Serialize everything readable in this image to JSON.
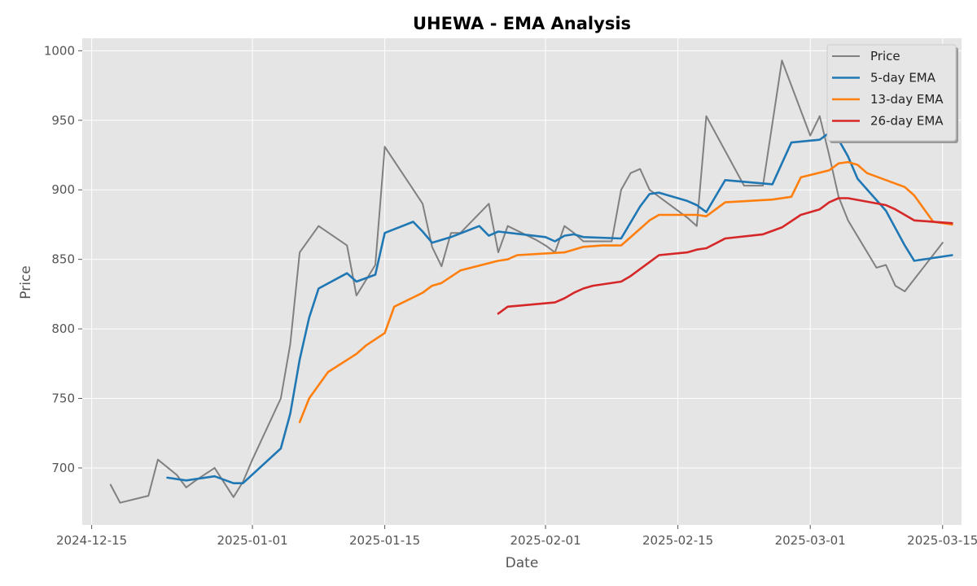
{
  "chart_data": {
    "type": "line",
    "title": "UHEWA - EMA Analysis",
    "xlabel": "Date",
    "ylabel": "Price",
    "xlim": [
      "2024-12-14",
      "2025-03-17"
    ],
    "ylim": [
      659,
      1009
    ],
    "x_ticks": [
      "2024-12-15",
      "2025-01-01",
      "2025-01-15",
      "2025-02-01",
      "2025-02-15",
      "2025-03-01",
      "2025-03-15"
    ],
    "y_ticks": [
      700,
      750,
      800,
      850,
      900,
      950,
      1000
    ],
    "grid": true,
    "legend_position": "top-right",
    "series": [
      {
        "name": "Price",
        "color": "#808080",
        "points": [
          [
            "2024-12-17",
            688
          ],
          [
            "2024-12-18",
            675
          ],
          [
            "2024-12-21",
            680
          ],
          [
            "2024-12-22",
            706
          ],
          [
            "2024-12-24",
            695
          ],
          [
            "2024-12-25",
            686
          ],
          [
            "2024-12-26",
            691
          ],
          [
            "2024-12-28",
            700
          ],
          [
            "2024-12-30",
            679
          ],
          [
            "2024-12-31",
            690
          ],
          [
            "2025-01-01",
            706
          ],
          [
            "2025-01-04",
            750
          ],
          [
            "2025-01-05",
            789
          ],
          [
            "2025-01-06",
            855
          ],
          [
            "2025-01-08",
            874
          ],
          [
            "2025-01-11",
            860
          ],
          [
            "2025-01-12",
            824
          ],
          [
            "2025-01-14",
            846
          ],
          [
            "2025-01-15",
            931
          ],
          [
            "2025-01-19",
            890
          ],
          [
            "2025-01-20",
            859
          ],
          [
            "2025-01-21",
            845
          ],
          [
            "2025-01-22",
            869
          ],
          [
            "2025-01-23",
            869
          ],
          [
            "2025-01-26",
            890
          ],
          [
            "2025-01-27",
            855
          ],
          [
            "2025-01-28",
            874
          ],
          [
            "2025-01-31",
            864
          ],
          [
            "2025-02-01",
            860
          ],
          [
            "2025-02-02",
            855
          ],
          [
            "2025-02-03",
            874
          ],
          [
            "2025-02-04",
            869
          ],
          [
            "2025-02-05",
            863
          ],
          [
            "2025-02-07",
            863
          ],
          [
            "2025-02-08",
            863
          ],
          [
            "2025-02-09",
            900
          ],
          [
            "2025-02-10",
            912
          ],
          [
            "2025-02-11",
            915
          ],
          [
            "2025-02-12",
            900
          ],
          [
            "2025-02-16",
            880
          ],
          [
            "2025-02-17",
            874
          ],
          [
            "2025-02-18",
            953
          ],
          [
            "2025-02-22",
            903
          ],
          [
            "2025-02-24",
            903
          ],
          [
            "2025-02-26",
            993
          ],
          [
            "2025-03-01",
            939
          ],
          [
            "2025-03-02",
            953
          ],
          [
            "2025-03-03",
            925
          ],
          [
            "2025-03-04",
            895
          ],
          [
            "2025-03-05",
            878
          ],
          [
            "2025-03-08",
            844
          ],
          [
            "2025-03-09",
            846
          ],
          [
            "2025-03-10",
            831
          ],
          [
            "2025-03-11",
            827
          ],
          [
            "2025-03-15",
            862
          ]
        ]
      },
      {
        "name": "5-day EMA",
        "color": "#1f77b4",
        "points": [
          [
            "2024-12-23",
            693
          ],
          [
            "2024-12-25",
            691
          ],
          [
            "2024-12-28",
            694
          ],
          [
            "2024-12-30",
            689
          ],
          [
            "2024-12-31",
            689
          ],
          [
            "2025-01-04",
            714
          ],
          [
            "2025-01-05",
            739
          ],
          [
            "2025-01-06",
            778
          ],
          [
            "2025-01-07",
            808
          ],
          [
            "2025-01-08",
            829
          ],
          [
            "2025-01-11",
            840
          ],
          [
            "2025-01-12",
            834
          ],
          [
            "2025-01-14",
            839
          ],
          [
            "2025-01-15",
            869
          ],
          [
            "2025-01-18",
            877
          ],
          [
            "2025-01-19",
            870
          ],
          [
            "2025-01-20",
            862
          ],
          [
            "2025-01-22",
            866
          ],
          [
            "2025-01-25",
            874
          ],
          [
            "2025-01-26",
            867
          ],
          [
            "2025-01-27",
            870
          ],
          [
            "2025-02-01",
            866
          ],
          [
            "2025-02-02",
            863
          ],
          [
            "2025-02-03",
            867
          ],
          [
            "2025-02-04",
            868
          ],
          [
            "2025-02-05",
            866
          ],
          [
            "2025-02-09",
            865
          ],
          [
            "2025-02-11",
            888
          ],
          [
            "2025-02-12",
            897
          ],
          [
            "2025-02-13",
            898
          ],
          [
            "2025-02-16",
            892
          ],
          [
            "2025-02-17",
            889
          ],
          [
            "2025-02-18",
            884
          ],
          [
            "2025-02-20",
            907
          ],
          [
            "2025-02-25",
            904
          ],
          [
            "2025-02-27",
            934
          ],
          [
            "2025-03-02",
            936
          ],
          [
            "2025-03-03",
            941
          ],
          [
            "2025-03-04",
            936
          ],
          [
            "2025-03-05",
            924
          ],
          [
            "2025-03-06",
            908
          ],
          [
            "2025-03-09",
            885
          ],
          [
            "2025-03-11",
            860
          ],
          [
            "2025-03-12",
            849
          ],
          [
            "2025-03-16",
            853
          ]
        ]
      },
      {
        "name": "13-day EMA",
        "color": "#ff7f0e",
        "points": [
          [
            "2025-01-06",
            733
          ],
          [
            "2025-01-07",
            750
          ],
          [
            "2025-01-09",
            769
          ],
          [
            "2025-01-12",
            782
          ],
          [
            "2025-01-13",
            788
          ],
          [
            "2025-01-15",
            797
          ],
          [
            "2025-01-16",
            816
          ],
          [
            "2025-01-19",
            826
          ],
          [
            "2025-01-20",
            831
          ],
          [
            "2025-01-21",
            833
          ],
          [
            "2025-01-23",
            842
          ],
          [
            "2025-01-27",
            849
          ],
          [
            "2025-01-28",
            850
          ],
          [
            "2025-01-29",
            853
          ],
          [
            "2025-02-03",
            855
          ],
          [
            "2025-02-04",
            857
          ],
          [
            "2025-02-05",
            859
          ],
          [
            "2025-02-07",
            860
          ],
          [
            "2025-02-09",
            860
          ],
          [
            "2025-02-11",
            872
          ],
          [
            "2025-02-12",
            878
          ],
          [
            "2025-02-13",
            882
          ],
          [
            "2025-02-17",
            882
          ],
          [
            "2025-02-18",
            881
          ],
          [
            "2025-02-20",
            891
          ],
          [
            "2025-02-25",
            893
          ],
          [
            "2025-02-27",
            895
          ],
          [
            "2025-02-28",
            909
          ],
          [
            "2025-03-03",
            914
          ],
          [
            "2025-03-04",
            919
          ],
          [
            "2025-03-05",
            920
          ],
          [
            "2025-03-06",
            918
          ],
          [
            "2025-03-07",
            912
          ],
          [
            "2025-03-11",
            902
          ],
          [
            "2025-03-12",
            896
          ],
          [
            "2025-03-14",
            877
          ],
          [
            "2025-03-16",
            875
          ]
        ]
      },
      {
        "name": "26-day EMA",
        "color": "#d62728",
        "points": [
          [
            "2025-01-27",
            811
          ],
          [
            "2025-01-28",
            816
          ],
          [
            "2025-02-02",
            819
          ],
          [
            "2025-02-03",
            822
          ],
          [
            "2025-02-04",
            826
          ],
          [
            "2025-02-05",
            829
          ],
          [
            "2025-02-06",
            831
          ],
          [
            "2025-02-09",
            834
          ],
          [
            "2025-02-10",
            838
          ],
          [
            "2025-02-11",
            843
          ],
          [
            "2025-02-12",
            848
          ],
          [
            "2025-02-13",
            853
          ],
          [
            "2025-02-16",
            855
          ],
          [
            "2025-02-17",
            857
          ],
          [
            "2025-02-18",
            858
          ],
          [
            "2025-02-20",
            865
          ],
          [
            "2025-02-24",
            868
          ],
          [
            "2025-02-26",
            873
          ],
          [
            "2025-02-28",
            882
          ],
          [
            "2025-03-02",
            886
          ],
          [
            "2025-03-03",
            891
          ],
          [
            "2025-03-04",
            894
          ],
          [
            "2025-03-05",
            894
          ],
          [
            "2025-03-09",
            889
          ],
          [
            "2025-03-10",
            886
          ],
          [
            "2025-03-12",
            878
          ],
          [
            "2025-03-16",
            876
          ]
        ]
      }
    ]
  }
}
